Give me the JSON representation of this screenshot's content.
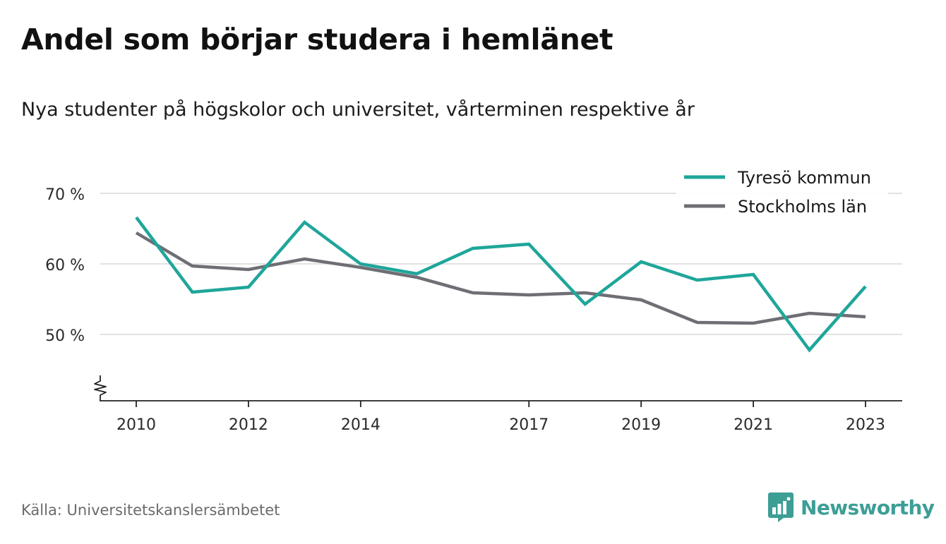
{
  "title": "Andel som börjar studera i hemlänet",
  "subtitle": "Nya studenter på högskolor och universitet, vårterminen respektive år",
  "source": "Källa: Universitetskanslersämbetet",
  "brand": {
    "name": "Newsworthy",
    "icon": "newsworthy-logo-icon",
    "color": "#3d9e96"
  },
  "chart_data": {
    "type": "line",
    "x": [
      2010,
      2011,
      2012,
      2013,
      2014,
      2015,
      2016,
      2017,
      2018,
      2019,
      2020,
      2021,
      2022,
      2023
    ],
    "x_tick_labels": [
      "2010",
      "2012",
      "2014",
      "2017",
      "2019",
      "2021",
      "2023"
    ],
    "x_tick_values": [
      2010,
      2012,
      2014,
      2017,
      2019,
      2021,
      2023
    ],
    "y_tick_labels": [
      "50 %",
      "60 %",
      "70 %"
    ],
    "y_tick_values": [
      50,
      60,
      70
    ],
    "ylim": [
      41,
      70
    ],
    "y_axis_break": true,
    "grid": true,
    "legend_position": "top-right",
    "series": [
      {
        "name": "Tyresö kommun",
        "color": "#1fa69a",
        "values": [
          66.6,
          56.0,
          56.7,
          65.9,
          60.0,
          58.6,
          62.2,
          62.8,
          54.3,
          60.3,
          57.7,
          58.5,
          47.8,
          56.8
        ]
      },
      {
        "name": "Stockholms län",
        "color": "#6f6e75",
        "values": [
          64.4,
          59.7,
          59.2,
          60.7,
          59.5,
          58.1,
          55.9,
          55.6,
          55.9,
          54.9,
          51.7,
          51.6,
          53.0,
          52.5
        ]
      }
    ]
  }
}
